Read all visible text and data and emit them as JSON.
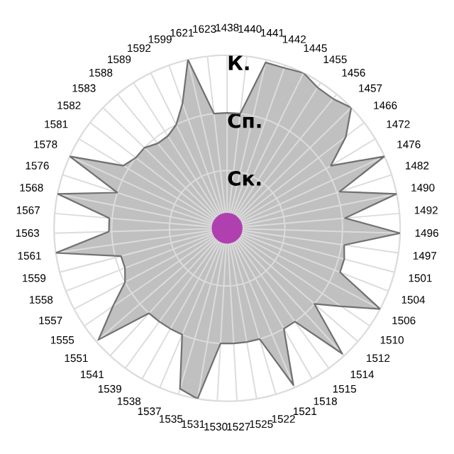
{
  "chart_data": {
    "type": "radar",
    "categories": [
      "1438",
      "1440",
      "1441",
      "1442",
      "1445",
      "1455",
      "1456",
      "1457",
      "1466",
      "1472",
      "1476",
      "1482",
      "1490",
      "1492",
      "1496",
      "1497",
      "1501",
      "1504",
      "1506",
      "1510",
      "1512",
      "1514",
      "1515",
      "1518",
      "1521",
      "1522",
      "1525",
      "1527",
      "1530",
      "1531",
      "1535",
      "1537",
      "1538",
      "1539",
      "1541",
      "1551",
      "1555",
      "1557",
      "1558",
      "1559",
      "1561",
      "1563",
      "1567",
      "1568",
      "1576",
      "1578",
      "1581",
      "1582",
      "1583",
      "1588",
      "1589",
      "1592",
      "1599",
      "1621",
      "1623"
    ],
    "series": [
      {
        "color": "#c0c0c0",
        "values": [
          2.0,
          2.0,
          2.95,
          2.95,
          3.0,
          2.9,
          2.9,
          3.0,
          2.6,
          2.1,
          3.0,
          2.05,
          3.0,
          2.05,
          3.0,
          2.05,
          2.1,
          2.1,
          3.0,
          2.4,
          2.0,
          2.95,
          2.0,
          2.0,
          2.95,
          2.0,
          2.0,
          2.0,
          2.0,
          3.0,
          2.9,
          2.0,
          2.0,
          2.0,
          2.0,
          2.95,
          2.4,
          2.0,
          1.9,
          1.9,
          3.0,
          2.05,
          2.05,
          3.0,
          2.0,
          3.0,
          2.1,
          2.0,
          2.0,
          1.9,
          1.9,
          2.0,
          2.3,
          3.0,
          2.0
        ]
      }
    ],
    "ylim": [
      0,
      3
    ],
    "yticks": [
      {
        "value": 1,
        "label": "Ск."
      },
      {
        "value": 2,
        "label": "Сп."
      },
      {
        "value": 3,
        "label": "К."
      }
    ],
    "grid": true,
    "legend": false,
    "marker": "none",
    "line_style": "solid"
  }
}
